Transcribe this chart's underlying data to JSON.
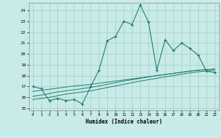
{
  "xlabel": "Humidex (Indice chaleur)",
  "x": [
    0,
    1,
    2,
    3,
    4,
    5,
    6,
    7,
    8,
    9,
    10,
    11,
    12,
    13,
    14,
    15,
    16,
    17,
    18,
    19,
    20,
    21,
    22
  ],
  "line_main": [
    17.0,
    16.8,
    15.7,
    15.9,
    15.7,
    15.8,
    15.4,
    17.0,
    18.5,
    21.2,
    21.6,
    23.0,
    22.7,
    24.5,
    22.9,
    18.5,
    21.3,
    20.3,
    21.0,
    20.5,
    19.9,
    18.4,
    18.3
  ],
  "line_reg1": [
    16.55,
    16.65,
    16.75,
    16.85,
    16.95,
    17.05,
    17.12,
    17.2,
    17.3,
    17.4,
    17.5,
    17.6,
    17.7,
    17.8,
    17.9,
    18.0,
    18.1,
    18.2,
    18.3,
    18.4,
    18.48,
    18.55,
    18.62
  ],
  "line_reg2": [
    15.8,
    15.9,
    16.0,
    16.15,
    16.3,
    16.4,
    16.5,
    16.6,
    16.75,
    16.9,
    17.05,
    17.2,
    17.35,
    17.5,
    17.62,
    17.75,
    17.88,
    18.0,
    18.12,
    18.25,
    18.35,
    18.42,
    18.48
  ],
  "line_reg3": [
    16.1,
    16.2,
    16.35,
    16.5,
    16.6,
    16.7,
    16.8,
    16.92,
    17.05,
    17.2,
    17.35,
    17.5,
    17.62,
    17.75,
    17.88,
    18.0,
    18.1,
    18.2,
    18.32,
    18.42,
    18.5,
    18.55,
    18.6
  ],
  "color": "#1a7a6a",
  "bg_color": "#c8eae8",
  "grid_color": "#a0ccc8",
  "ylim": [
    14.8,
    24.7
  ],
  "yticks": [
    15,
    16,
    17,
    18,
    19,
    20,
    21,
    22,
    23,
    24
  ],
  "xlim": [
    -0.5,
    22.5
  ]
}
